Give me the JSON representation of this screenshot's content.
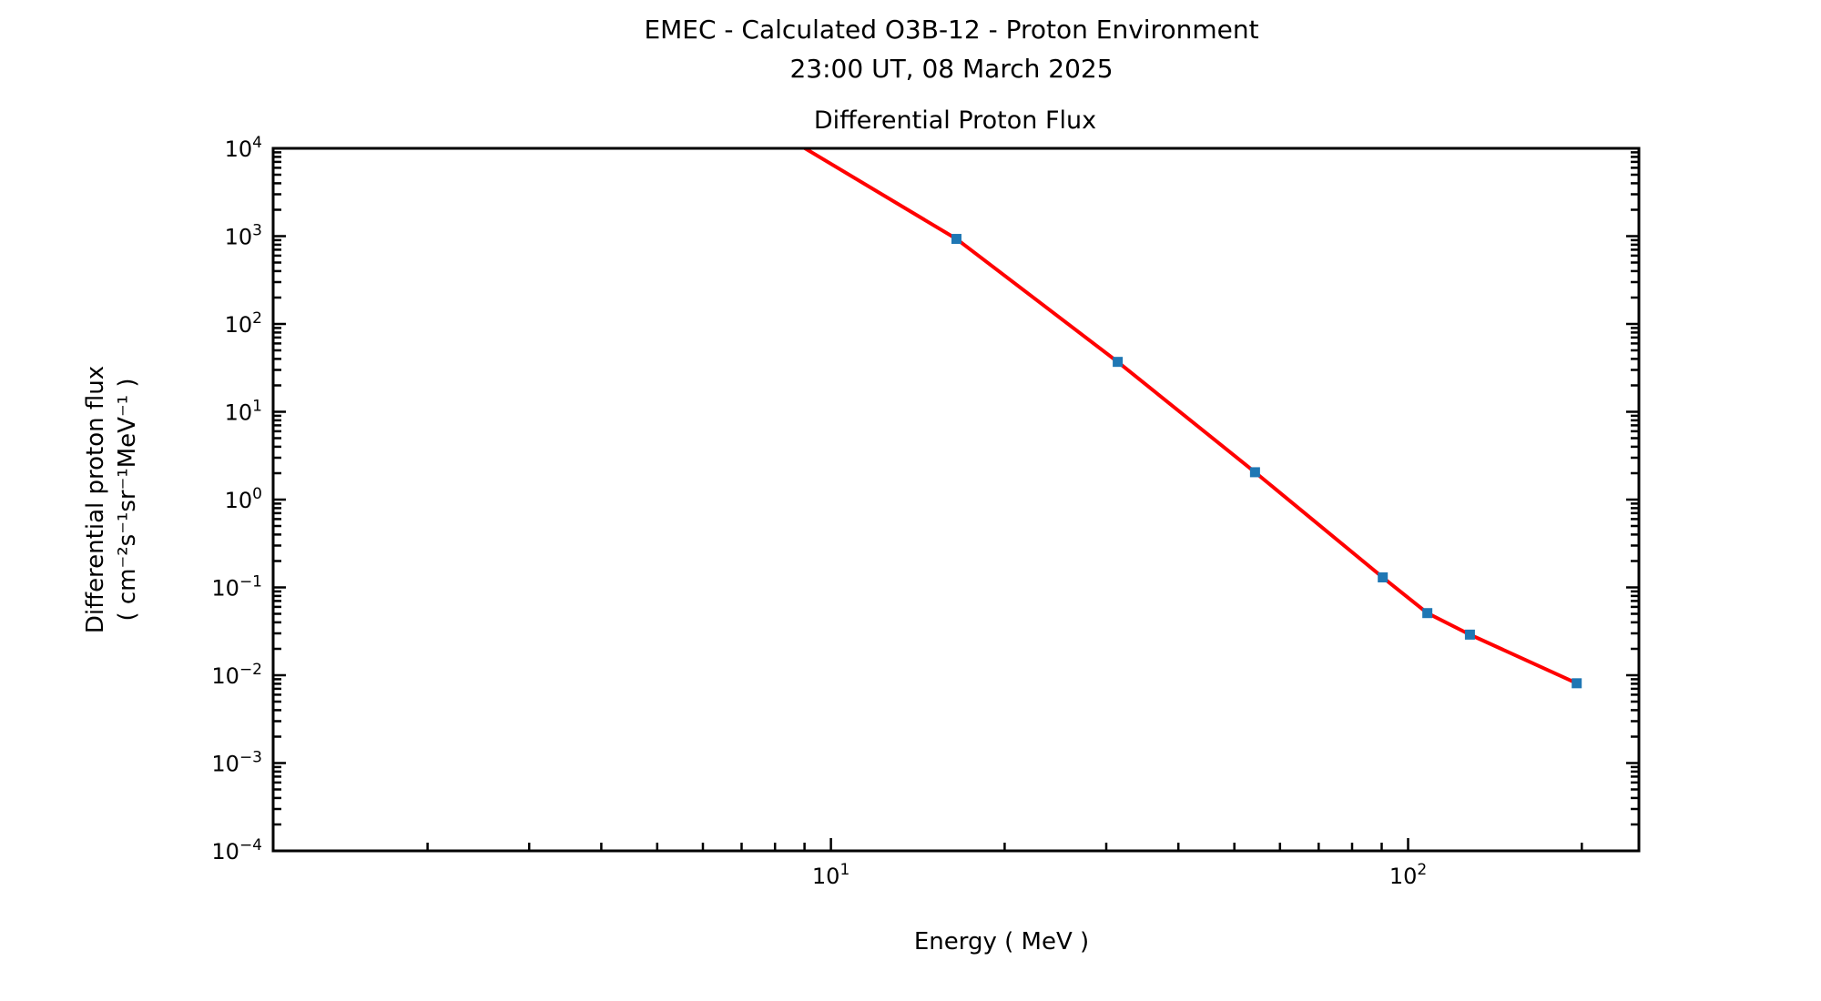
{
  "figure": {
    "background_color": "#ffffff",
    "text_color": "#000000",
    "axis_color": "#000000"
  },
  "chart_data": {
    "type": "line",
    "suptitle_line1": "EMEC - Calculated O3B-12 - Proton Environment",
    "suptitle_line2": "23:00 UT, 08 March 2025",
    "title": "Differential Proton Flux",
    "xlabel": "Energy ( MeV )",
    "ylabel_line1": "Differential proton flux",
    "ylabel_line2": "( cm⁻²s⁻¹sr⁻¹MeV⁻¹ )",
    "x_scale": "log",
    "y_scale": "log",
    "xlim": [
      1.08,
      251.2
    ],
    "ylim": [
      0.0001,
      10000
    ],
    "x_tick_exponents": [
      1,
      2
    ],
    "y_tick_exponents": [
      4,
      3,
      2,
      1,
      0,
      -1,
      -2,
      -3,
      -4
    ],
    "grid": false,
    "legend": null,
    "series": [
      {
        "name": "Differential proton flux",
        "line_color": "#ff0000",
        "marker": "square",
        "marker_color": "#1f77b4",
        "x": [
          8.8,
          16.5,
          31.4,
          54.3,
          90.4,
          108.0,
          128.0,
          196.0
        ],
        "y": [
          11000,
          930,
          37,
          2.05,
          0.13,
          0.051,
          0.029,
          0.0081
        ]
      }
    ]
  }
}
